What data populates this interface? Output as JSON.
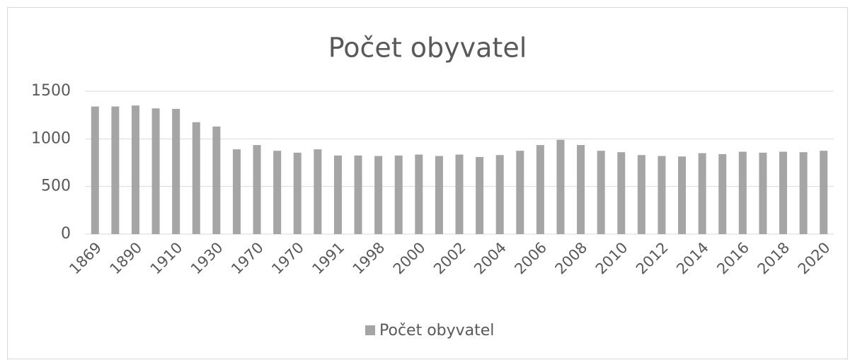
{
  "chart_data": {
    "type": "bar",
    "title": "Počet obyvatel",
    "categories": [
      "1869",
      null,
      "1890",
      null,
      "1910",
      null,
      "1930",
      null,
      "1970",
      null,
      "1970",
      null,
      "1991",
      null,
      "1998",
      null,
      "2000",
      null,
      "2002",
      null,
      "2004",
      null,
      "2006",
      null,
      "2008",
      null,
      "2010",
      null,
      "2012",
      null,
      "2014",
      null,
      "2016",
      null,
      "2018",
      null,
      "2020"
    ],
    "series": [
      {
        "name": "Počet obyvatel",
        "color": "#a5a5a5",
        "values": [
          1340,
          1340,
          1350,
          1320,
          1315,
          1175,
          1130,
          890,
          935,
          875,
          855,
          890,
          825,
          825,
          820,
          825,
          835,
          820,
          835,
          810,
          830,
          875,
          935,
          990,
          935,
          875,
          860,
          830,
          820,
          815,
          850,
          840,
          865,
          855,
          865,
          860,
          875
        ]
      }
    ],
    "ylim": [
      0,
      1500
    ],
    "yticks": [
      0,
      500,
      1000,
      1500
    ],
    "grid": true,
    "legend": "bottom"
  }
}
